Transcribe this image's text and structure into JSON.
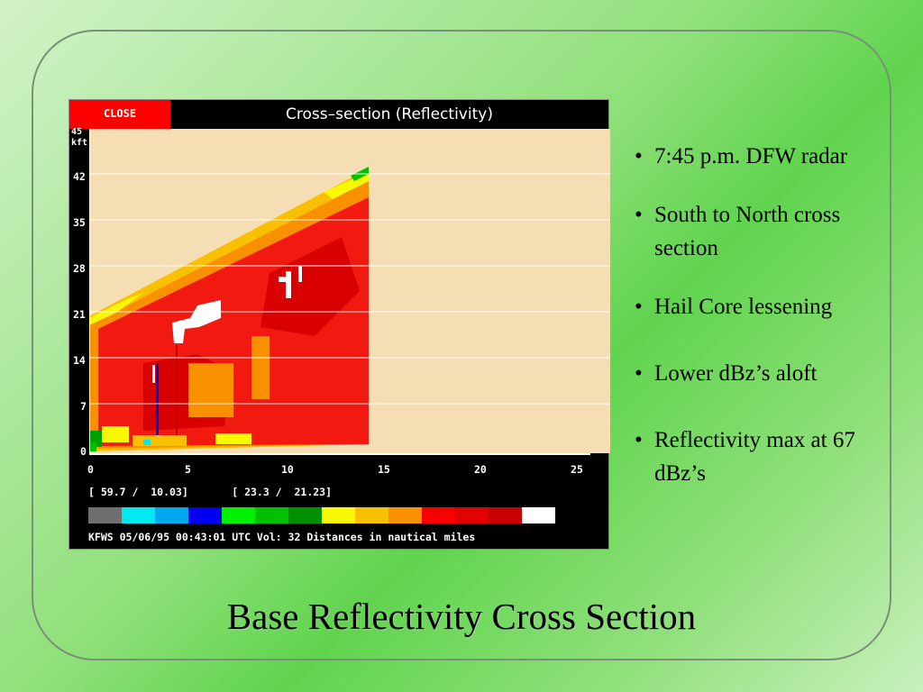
{
  "window": {
    "close_label": "CLOSE",
    "title": "Cross–section (Reflectivity)"
  },
  "radar": {
    "y_unit_top": "45",
    "y_unit": "kft",
    "y_ticks": [
      "42",
      "35",
      "28",
      "21",
      "14",
      "7",
      "0"
    ],
    "x_ticks": [
      "0",
      "5",
      "10",
      "15",
      "20",
      "25"
    ],
    "coords": "[ 59.7 /  10.03]       [ 23.3 /  21.23]",
    "status": "KFWS 05/06/95 00:43:01 UTC Vol: 32 Distances in nautical miles",
    "colorbar": [
      "#6f6f6f",
      "#00e8f0",
      "#00a8f0",
      "#0000f0",
      "#00f000",
      "#00c000",
      "#009000",
      "#f8f800",
      "#f8c000",
      "#f89000",
      "#f80000",
      "#e00000",
      "#c80000",
      "#ffffff"
    ],
    "colors": {
      "background": "#f5deb3",
      "red": "#f21a10",
      "orange": "#f89000",
      "yellow": "#f8f800"
    }
  },
  "bullets": [
    "7:45 p.m. DFW radar",
    "South to North cross section",
    "Hail Core lessening",
    "Lower dBz’s aloft",
    "Reflectivity max at 67 dBz’s"
  ],
  "slide_title": "Base Reflectivity Cross Section"
}
